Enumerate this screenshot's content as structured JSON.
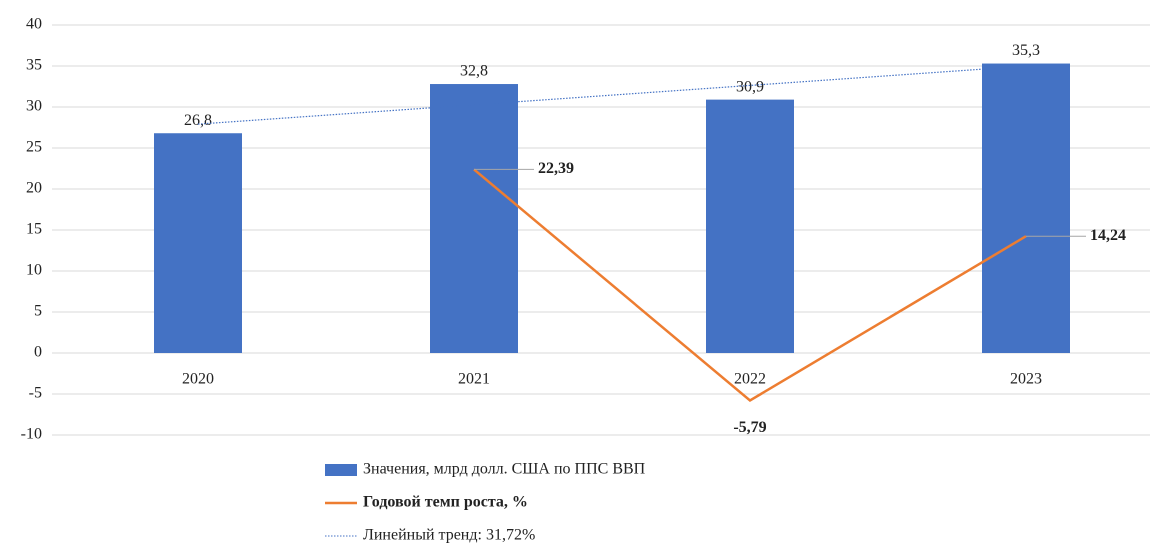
{
  "chart_data": {
    "type": "bar",
    "categories": [
      "2020",
      "2021",
      "2022",
      "2023"
    ],
    "series": [
      {
        "name": "Значения, млрд долл. США  по ППС ВВП",
        "color": "#4472c4",
        "type": "bar",
        "values": [
          26.8,
          32.8,
          30.9,
          35.3
        ],
        "value_labels": [
          "26,8",
          "32,8",
          "30,9",
          "35,3"
        ]
      },
      {
        "name": "Годовой темп роста, %",
        "color": "#ed7d31",
        "type": "line",
        "values": [
          null,
          22.39,
          -5.79,
          14.24
        ],
        "value_labels": [
          null,
          "22,39",
          "-5,79",
          "14,24"
        ]
      },
      {
        "name": "Линейный тренд: 31,72%",
        "color": "#4472c4",
        "type": "trend",
        "values": [
          27.91,
          30.27,
          32.63,
          34.99
        ]
      }
    ],
    "ylim": [
      -10,
      40
    ],
    "yticks": [
      -10,
      -5,
      0,
      5,
      10,
      15,
      20,
      25,
      30,
      35,
      40
    ],
    "grid": true
  }
}
